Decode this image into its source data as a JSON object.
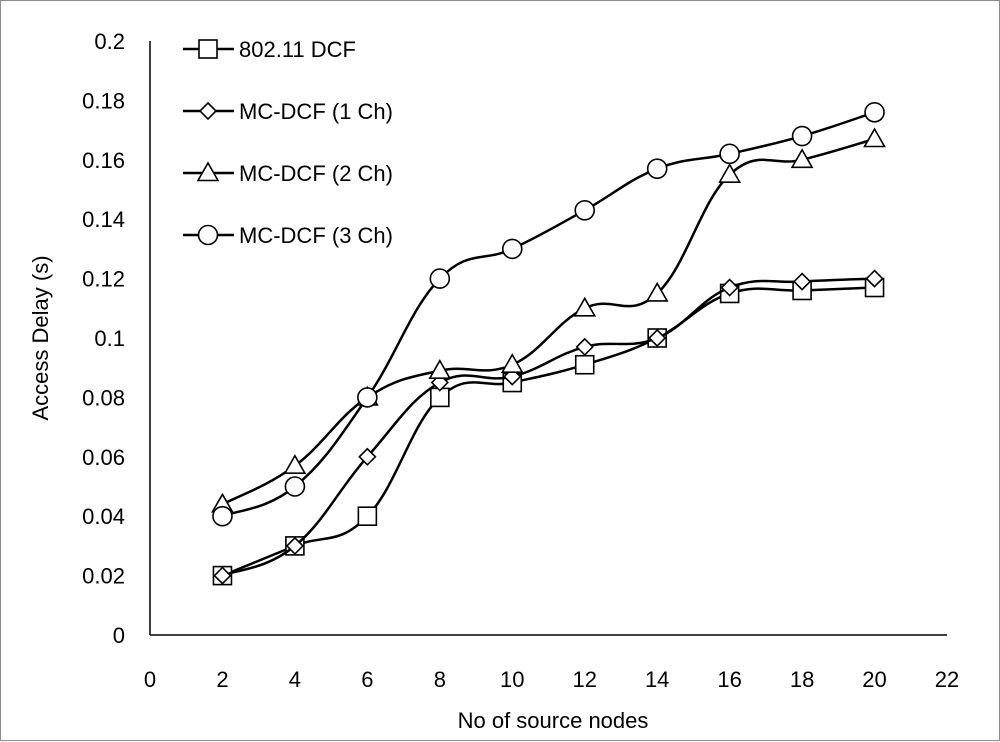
{
  "chart_data": {
    "type": "line",
    "title": "",
    "xlabel": "No of  source nodes",
    "ylabel": "Access Delay (s)",
    "xlim": [
      0,
      22
    ],
    "ylim": [
      0,
      0.2
    ],
    "xticks": [
      "0",
      "2",
      "4",
      "6",
      "8",
      "10",
      "12",
      "14",
      "16",
      "18",
      "20",
      "22"
    ],
    "yticks": [
      "0",
      "0.02",
      "0.04",
      "0.06",
      "0.08",
      "0.1",
      "0.12",
      "0.14",
      "0.16",
      "0.18",
      "0.2"
    ],
    "grid": false,
    "legend_position": "top-left",
    "x": [
      2,
      4,
      6,
      8,
      10,
      12,
      14,
      16,
      18,
      20
    ],
    "series": [
      {
        "name": "802.11 DCF",
        "marker": "square",
        "values": [
          0.02,
          0.03,
          0.04,
          0.08,
          0.085,
          0.091,
          0.1,
          0.115,
          0.116,
          0.117
        ]
      },
      {
        "name": "MC-DCF (1 Ch)",
        "marker": "diamond",
        "values": [
          0.02,
          0.03,
          0.06,
          0.085,
          0.087,
          0.097,
          0.1,
          0.117,
          0.119,
          0.12
        ]
      },
      {
        "name": "MC-DCF (2 Ch)",
        "marker": "triangle",
        "values": [
          0.044,
          0.057,
          0.08,
          0.089,
          0.091,
          0.11,
          0.115,
          0.155,
          0.16,
          0.167
        ]
      },
      {
        "name": "MC-DCF (3 Ch)",
        "marker": "circle",
        "values": [
          0.04,
          0.05,
          0.08,
          0.12,
          0.13,
          0.143,
          0.157,
          0.162,
          0.168,
          0.176
        ]
      }
    ]
  }
}
